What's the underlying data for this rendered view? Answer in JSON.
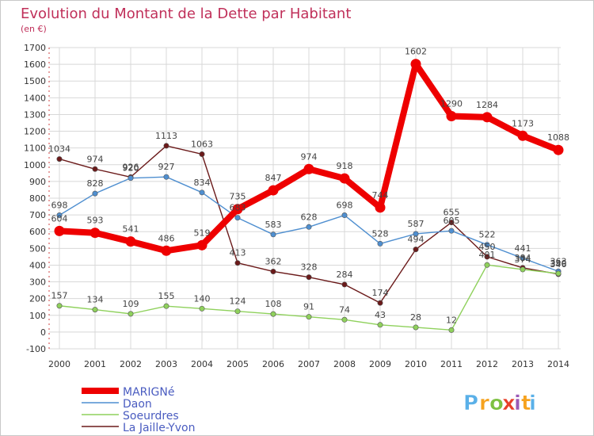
{
  "chart_data": {
    "type": "line",
    "title": "Evolution du Montant de la Dette par Habitant",
    "subtitle": "(en €)",
    "x": [
      "2000",
      "2001",
      "2002",
      "2003",
      "2004",
      "2005",
      "2006",
      "2007",
      "2008",
      "2009",
      "2010",
      "2011",
      "2012",
      "2013",
      "2014"
    ],
    "ylim": [
      -100,
      1700
    ],
    "yticks": [
      -100,
      0,
      100,
      200,
      300,
      400,
      500,
      600,
      700,
      800,
      900,
      1000,
      1100,
      1200,
      1300,
      1400,
      1500,
      1600,
      1700
    ],
    "grid": true,
    "legend_position": "bottom-left",
    "series": [
      {
        "name": "MARIGNé",
        "color": "#ee0000",
        "values": [
          604,
          593,
          541,
          486,
          519,
          735,
          847,
          974,
          918,
          744,
          1602,
          1290,
          1284,
          1173,
          1088
        ]
      },
      {
        "name": "Daon",
        "color": "#4f8fd0",
        "values": [
          698,
          828,
          920,
          927,
          834,
          683,
          583,
          628,
          698,
          528,
          587,
          605,
          522,
          441,
          363
        ]
      },
      {
        "name": "Soeurdres",
        "color": "#8fd15c",
        "values": [
          157,
          134,
          109,
          155,
          140,
          124,
          108,
          91,
          74,
          43,
          28,
          12,
          401,
          374,
          350
        ]
      },
      {
        "name": "La Jaille-Yvon",
        "color": "#6b1a1a",
        "values": [
          1034,
          974,
          926,
          1113,
          1063,
          413,
          362,
          328,
          284,
          174,
          494,
          655,
          450,
          384,
          346
        ]
      }
    ]
  },
  "branding": {
    "logo_text": "Proxiti",
    "logo_colors": [
      "#5ab0e8",
      "#f6a21e",
      "#7dc142",
      "#e8402a",
      "#9b59b6",
      "#f6a21e",
      "#5ab0e8"
    ]
  },
  "colors": {
    "title": "#c0305a",
    "grid": "#d8d8d8",
    "axis_text": "#333333",
    "label_text": "#444444"
  }
}
